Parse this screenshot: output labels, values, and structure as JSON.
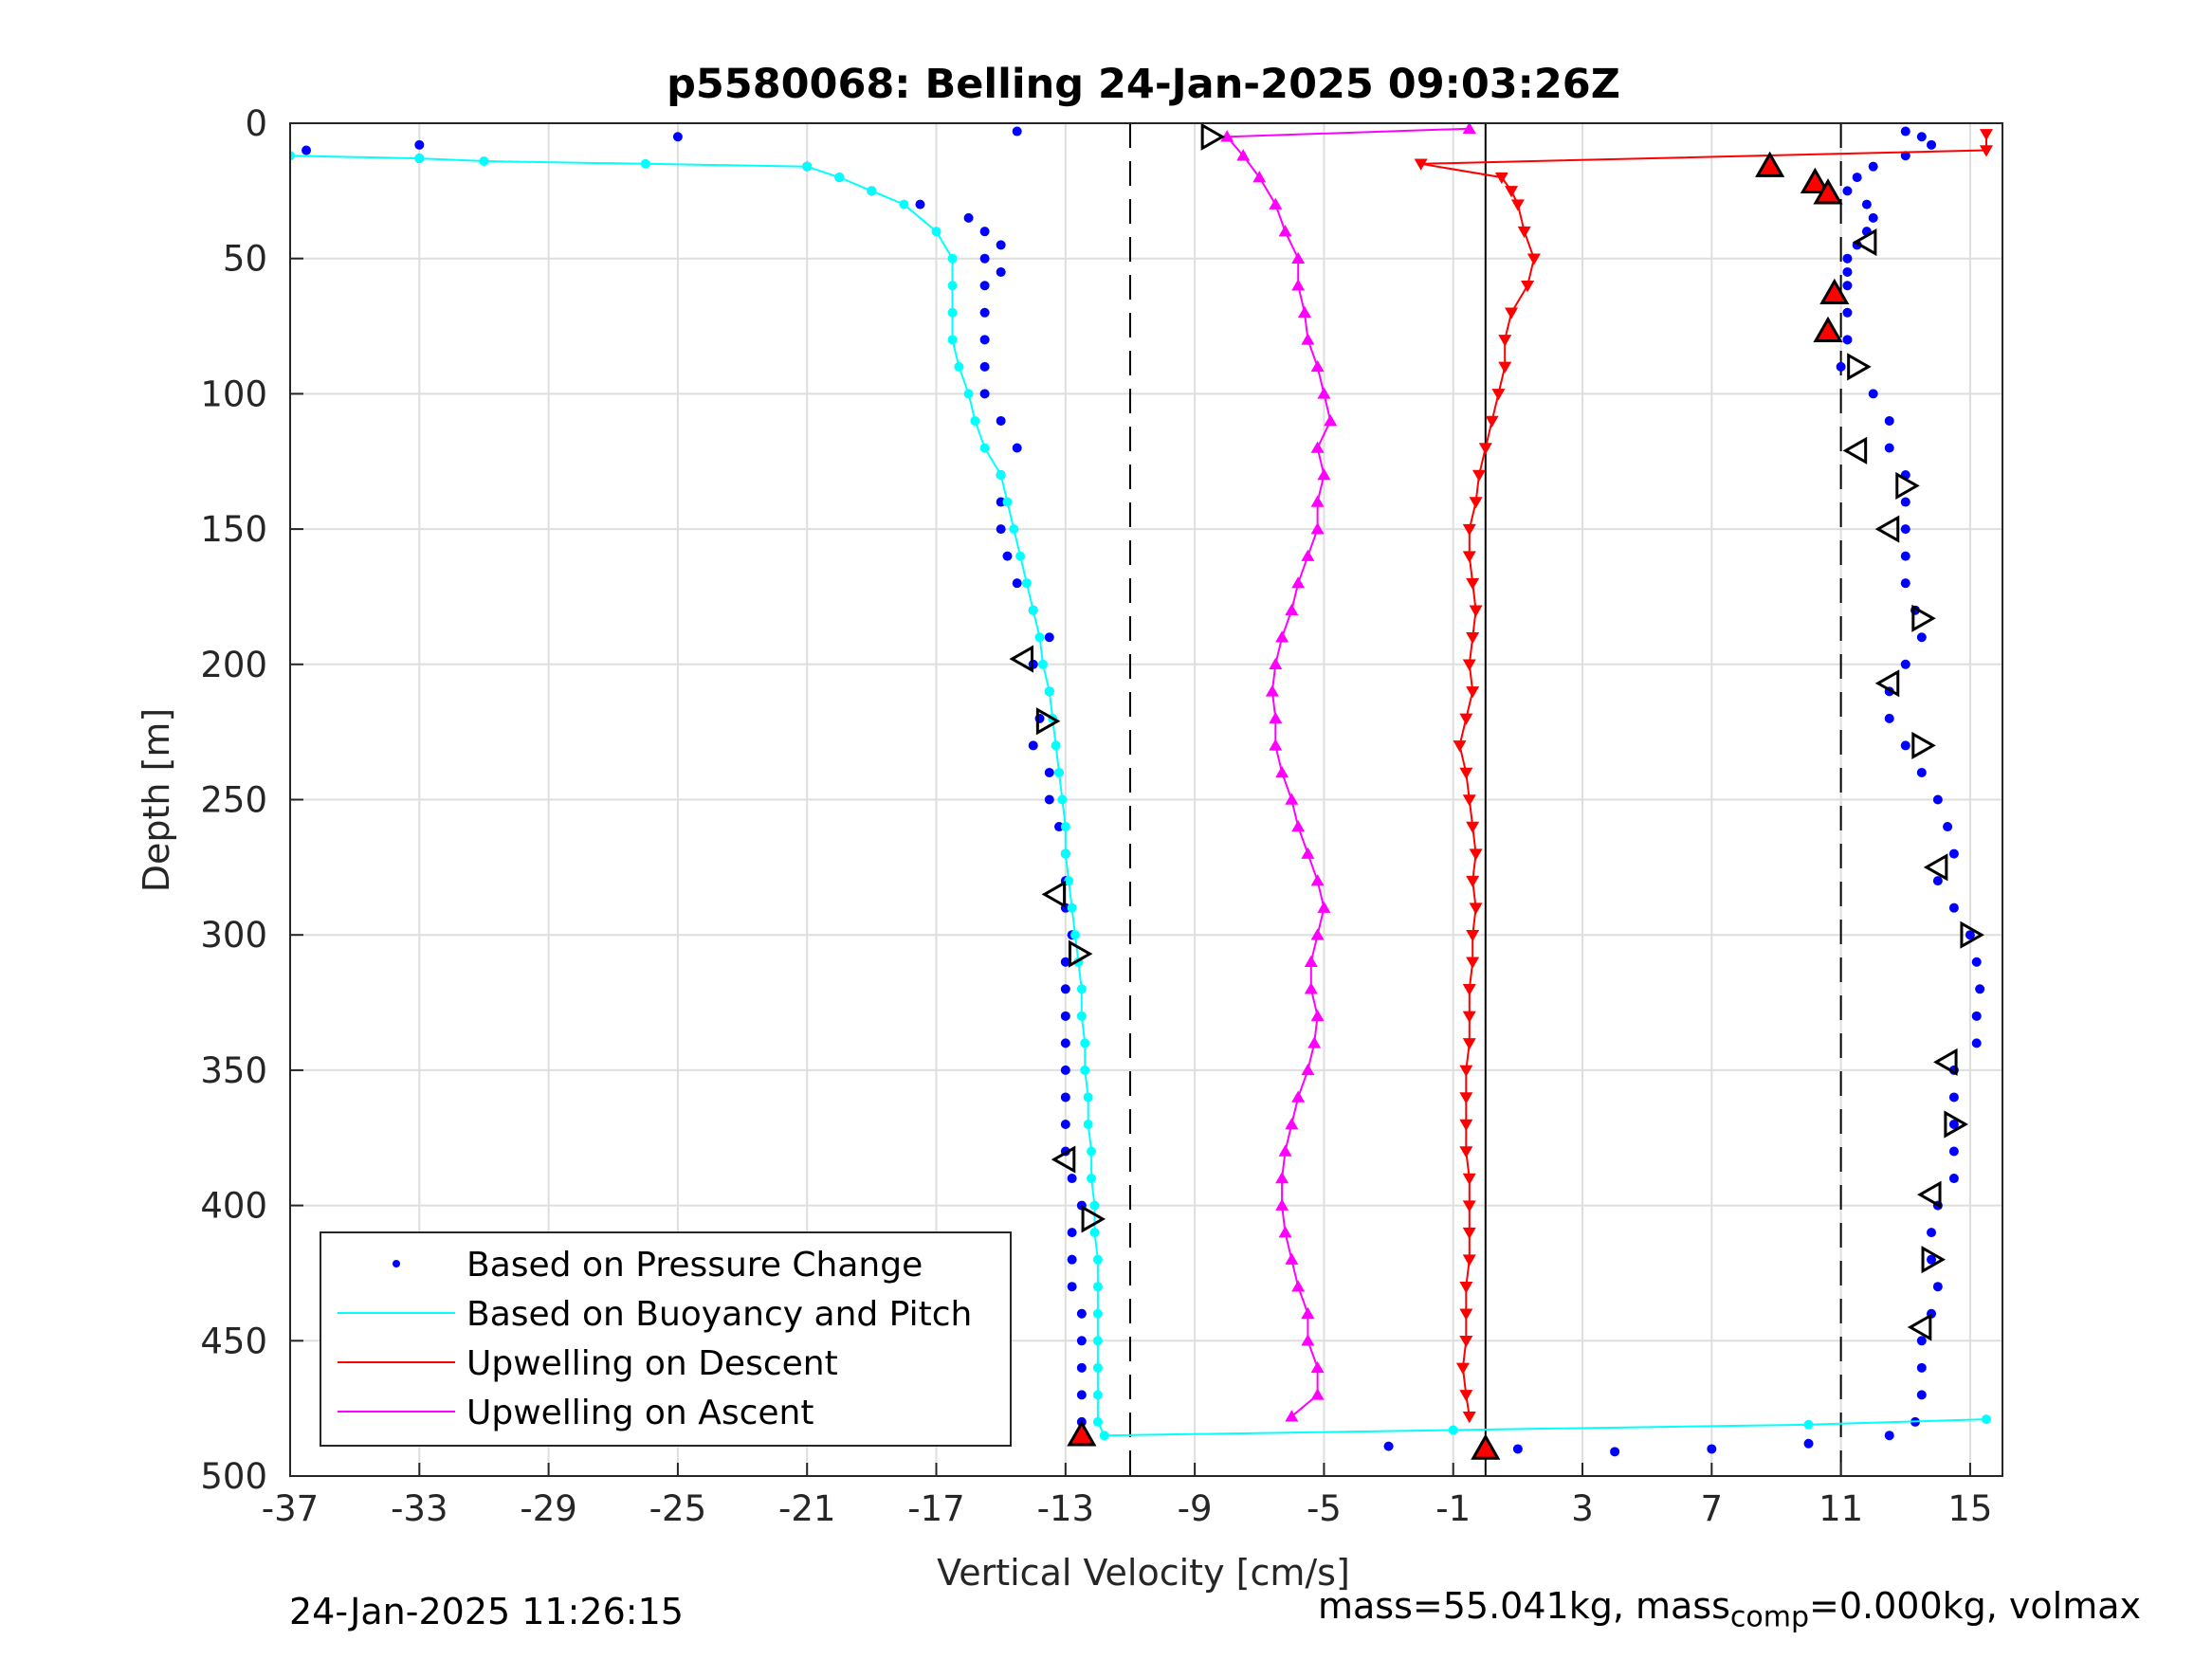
{
  "chart_data": {
    "type": "scatter",
    "title": "p5580068: Belling 24-Jan-2025 09:03:26Z",
    "xlabel": "Vertical Velocity [cm/s]",
    "ylabel": "Depth [m]",
    "xlim": [
      -37,
      16
    ],
    "ylim": [
      0,
      500
    ],
    "y_reversed": true,
    "xticks": [
      -37,
      -33,
      -29,
      -25,
      -21,
      -17,
      -13,
      -9,
      -5,
      -1,
      3,
      7,
      11,
      15
    ],
    "yticks": [
      0,
      50,
      100,
      150,
      200,
      250,
      300,
      350,
      400,
      450,
      500
    ],
    "grid": true,
    "legend_position": "bottom-left",
    "reference_lines": [
      {
        "x": -11,
        "style": "dashed"
      },
      {
        "x": 11,
        "style": "dashed"
      },
      {
        "x": 0,
        "style": "solid"
      }
    ],
    "series": [
      {
        "name": "Based on Pressure Change",
        "color": "#0000ff",
        "marker": "dot",
        "depth": [
          3,
          5,
          8,
          10,
          13,
          16,
          20,
          25,
          30,
          35,
          40,
          45,
          50,
          55,
          60,
          70,
          80,
          90,
          100,
          110,
          120,
          130,
          140,
          150,
          160,
          170,
          180,
          190,
          200,
          210,
          220,
          230,
          240,
          250,
          260,
          270,
          280,
          290,
          300,
          310,
          320,
          330,
          340,
          350,
          360,
          370,
          380,
          390,
          400,
          410,
          420,
          430,
          440,
          450,
          460,
          470,
          480,
          487,
          3,
          5,
          8,
          12,
          16,
          20,
          25,
          30,
          35,
          40,
          45,
          50,
          55,
          60,
          70,
          80,
          90,
          100,
          110,
          120,
          130,
          140,
          150,
          160,
          170,
          180,
          190,
          200,
          210,
          220,
          230,
          240,
          250,
          260,
          270,
          280,
          290,
          300,
          310,
          320,
          330,
          340,
          350,
          360,
          370,
          380,
          390,
          400,
          410,
          420,
          430,
          440,
          450,
          460,
          470,
          480,
          485,
          488,
          490,
          491,
          490,
          489
        ],
        "velocity": [
          -14.5,
          -25,
          -33,
          -36.5,
          -33,
          -21,
          -20,
          -19,
          -17.5,
          -16,
          -15.5,
          -15,
          -15.5,
          -15,
          -15.5,
          -15.5,
          -15.5,
          -15.5,
          -15.5,
          -15,
          -14.5,
          -15,
          -15,
          -15,
          -14.8,
          -14.5,
          -14,
          -13.5,
          -14,
          -13.5,
          -13.8,
          -14,
          -13.5,
          -13.5,
          -13.2,
          -13,
          -13,
          -13,
          -12.8,
          -13,
          -13,
          -13,
          -13,
          -13,
          -13,
          -13,
          -13,
          -12.8,
          -12.5,
          -12.8,
          -12.8,
          -12.8,
          -12.5,
          -12.5,
          -12.5,
          -12.5,
          -12.5,
          -12.5,
          13,
          13.5,
          13.8,
          13,
          12,
          11.5,
          11.2,
          11.8,
          12,
          11.8,
          11.5,
          11.2,
          11.2,
          11.2,
          11.2,
          11.2,
          11,
          12,
          12.5,
          12.5,
          13,
          13,
          13,
          13,
          13,
          13.3,
          13.5,
          13,
          12.5,
          12.5,
          13,
          13.5,
          14,
          14.3,
          14.5,
          14,
          14.5,
          15,
          15.2,
          15.3,
          15.2,
          15.2,
          14.5,
          14.5,
          14.5,
          14.5,
          14.5,
          14,
          13.8,
          13.8,
          14,
          13.8,
          13.5,
          13.5,
          13.5,
          13.3,
          12.5,
          10,
          7,
          4,
          1,
          -3
        ]
      },
      {
        "name": "Based on Buoyancy and Pitch",
        "color": "#00ffff",
        "marker": "line",
        "depth": [
          12,
          13,
          14,
          15,
          16,
          20,
          25,
          30,
          40,
          50,
          60,
          70,
          80,
          90,
          100,
          110,
          120,
          130,
          140,
          150,
          160,
          170,
          180,
          190,
          200,
          210,
          220,
          230,
          240,
          250,
          260,
          270,
          280,
          290,
          300,
          310,
          320,
          330,
          340,
          350,
          360,
          370,
          380,
          390,
          400,
          410,
          420,
          430,
          440,
          450,
          460,
          470,
          480,
          485,
          483,
          481,
          479
        ],
        "velocity": [
          -37,
          -33,
          -31,
          -26,
          -21,
          -20,
          -19,
          -18,
          -17,
          -16.5,
          -16.5,
          -16.5,
          -16.5,
          -16.3,
          -16,
          -15.8,
          -15.5,
          -15,
          -14.8,
          -14.6,
          -14.4,
          -14.2,
          -14,
          -13.8,
          -13.7,
          -13.5,
          -13.4,
          -13.3,
          -13.2,
          -13.1,
          -13,
          -13,
          -12.9,
          -12.8,
          -12.7,
          -12.6,
          -12.5,
          -12.5,
          -12.4,
          -12.4,
          -12.3,
          -12.3,
          -12.2,
          -12.2,
          -12.1,
          -12.1,
          -12,
          -12,
          -12,
          -12,
          -12,
          -12,
          -12,
          -11.8,
          -1,
          10,
          15.5
        ]
      },
      {
        "name": "Upwelling on Descent",
        "color": "#ff0000",
        "marker": "triangle-down",
        "depth": [
          4,
          10,
          15,
          20,
          25,
          30,
          40,
          50,
          60,
          70,
          80,
          90,
          100,
          110,
          120,
          130,
          140,
          150,
          160,
          170,
          180,
          190,
          200,
          210,
          220,
          230,
          240,
          250,
          260,
          270,
          280,
          290,
          300,
          310,
          320,
          330,
          340,
          350,
          360,
          370,
          380,
          390,
          400,
          410,
          420,
          430,
          440,
          450,
          460,
          470,
          478
        ],
        "velocity": [
          15.5,
          15.5,
          -2,
          0.5,
          0.8,
          1,
          1.2,
          1.5,
          1.3,
          0.8,
          0.6,
          0.6,
          0.4,
          0.2,
          0,
          -0.2,
          -0.3,
          -0.5,
          -0.5,
          -0.4,
          -0.3,
          -0.4,
          -0.5,
          -0.4,
          -0.6,
          -0.8,
          -0.6,
          -0.5,
          -0.4,
          -0.3,
          -0.4,
          -0.3,
          -0.4,
          -0.4,
          -0.5,
          -0.5,
          -0.5,
          -0.6,
          -0.6,
          -0.6,
          -0.6,
          -0.5,
          -0.5,
          -0.5,
          -0.5,
          -0.6,
          -0.6,
          -0.6,
          -0.7,
          -0.6,
          -0.5
        ]
      },
      {
        "name": "Upwelling on Ascent",
        "color": "#ff00ff",
        "marker": "triangle-up",
        "depth": [
          478,
          470,
          460,
          450,
          440,
          430,
          420,
          410,
          400,
          390,
          380,
          370,
          360,
          350,
          340,
          330,
          320,
          310,
          300,
          290,
          280,
          270,
          260,
          250,
          240,
          230,
          220,
          210,
          200,
          190,
          180,
          170,
          160,
          150,
          140,
          130,
          120,
          110,
          100,
          90,
          80,
          70,
          60,
          50,
          40,
          30,
          20,
          12,
          5,
          2
        ],
        "velocity": [
          -6,
          -5.2,
          -5.2,
          -5.5,
          -5.5,
          -5.8,
          -6,
          -6.2,
          -6.3,
          -6.3,
          -6.2,
          -6,
          -5.8,
          -5.5,
          -5.3,
          -5.2,
          -5.4,
          -5.4,
          -5.2,
          -5,
          -5.2,
          -5.5,
          -5.8,
          -6,
          -6.3,
          -6.5,
          -6.5,
          -6.6,
          -6.5,
          -6.3,
          -6,
          -5.8,
          -5.5,
          -5.2,
          -5.2,
          -5,
          -5.2,
          -4.8,
          -5,
          -5.2,
          -5.5,
          -5.6,
          -5.8,
          -5.8,
          -6.2,
          -6.5,
          -7,
          -7.5,
          -8,
          -0.5
        ]
      },
      {
        "name": "",
        "color": "#000000",
        "marker": "triangle-left-open",
        "depth": [
          198,
          285,
          383,
          396,
          445,
          347,
          275,
          207,
          121,
          150,
          44
        ],
        "velocity": [
          -14.3,
          -13.3,
          -13,
          13.8,
          13.5,
          14.3,
          14,
          12.5,
          11.5,
          12.5,
          11.8
        ]
      },
      {
        "name": "",
        "color": "#000000",
        "marker": "triangle-right-open",
        "depth": [
          5,
          221,
          307,
          405,
          300,
          370,
          420,
          230,
          183,
          134,
          90
        ],
        "velocity": [
          -8.5,
          -13.6,
          -12.6,
          -12.2,
          15,
          14.5,
          13.8,
          13.5,
          13.5,
          13,
          11.5
        ]
      },
      {
        "name": "",
        "color": "#ff0000",
        "marker": "triangle-up-filled",
        "depth": [
          16,
          22,
          26,
          63,
          77,
          485,
          490
        ],
        "velocity": [
          8.8,
          10.2,
          10.6,
          10.8,
          10.6,
          -12.5,
          0
        ]
      }
    ]
  },
  "footer": {
    "timestamp": "24-Jan-2025 11:26:15",
    "mass_text_1": "mass=55.041kg, mass",
    "mass_sub": "comp",
    "mass_text_2": "=0.000kg, volmax"
  }
}
